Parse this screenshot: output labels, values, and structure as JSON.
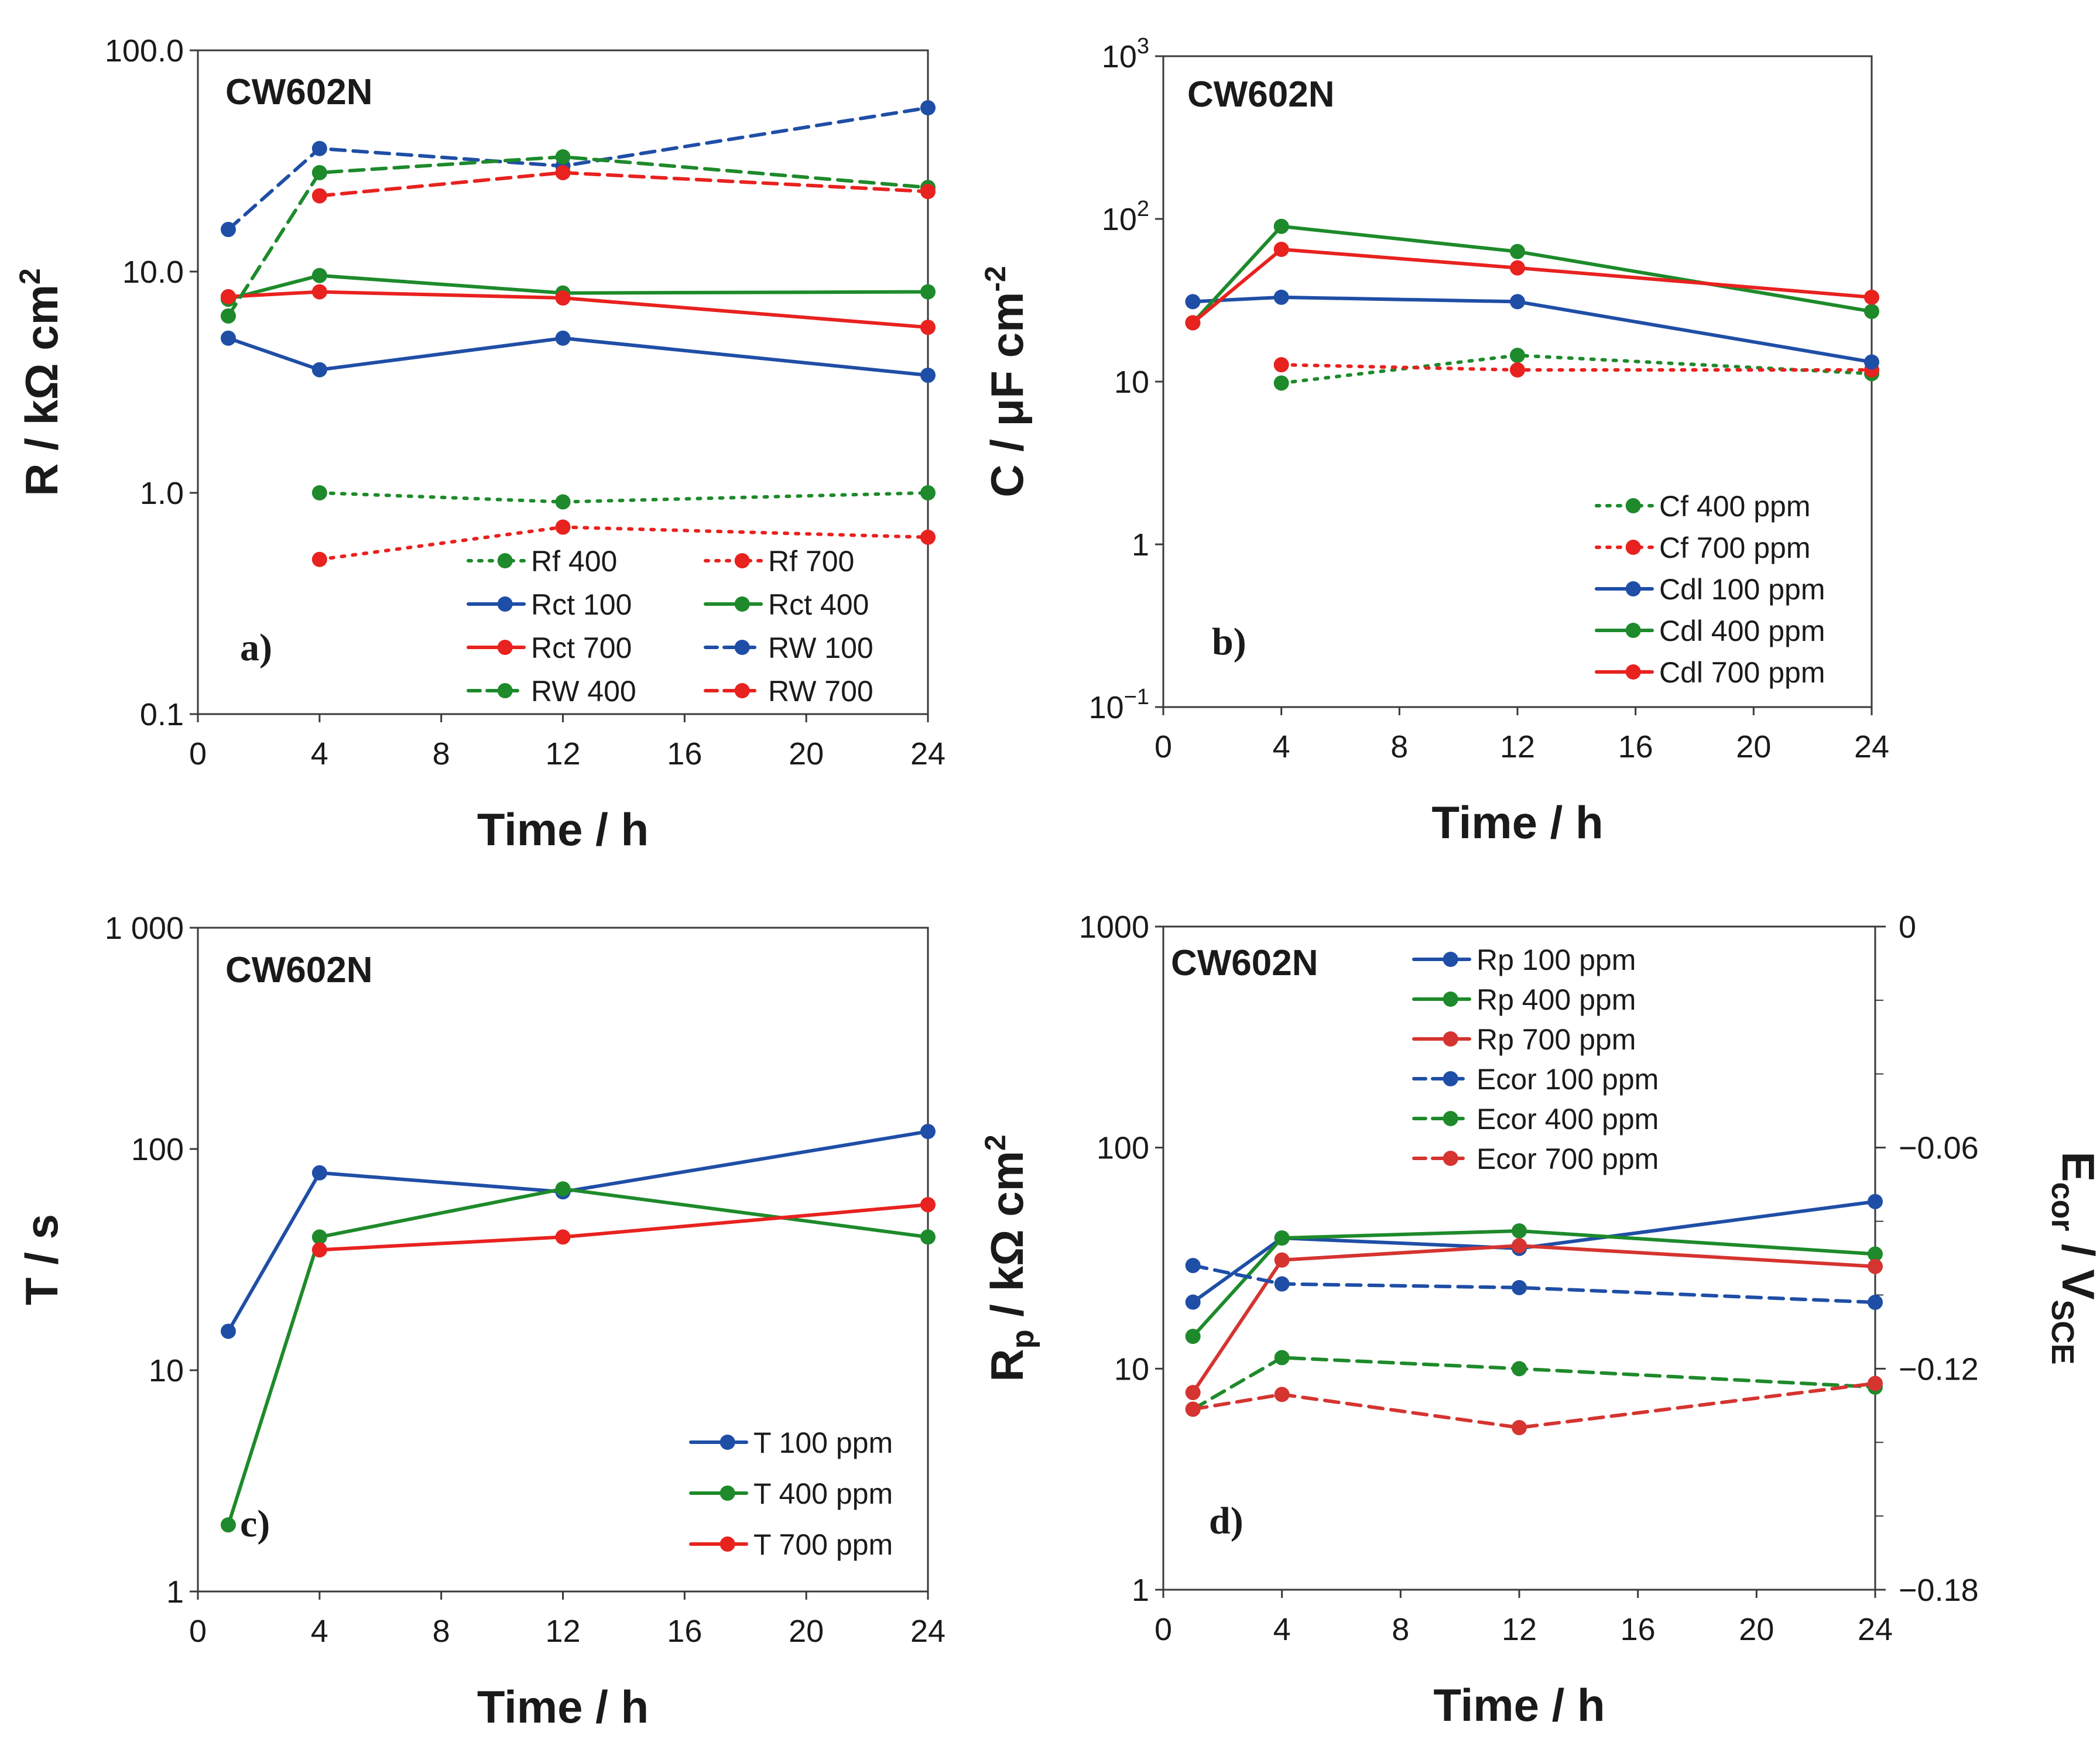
{
  "figure": {
    "colors": {
      "blue": "#1f4ea6",
      "green": "#1e8a2b",
      "red": "#e8221f",
      "red_d": "#d53430"
    },
    "chart_data": [
      {
        "type": "line",
        "id": "a",
        "title": "CW602N",
        "label": "a)",
        "xlabel": "Time / h",
        "ylabel": "R / kΩ cm²",
        "ylabel_base": "R / kΩ cm",
        "ylabel_sup": "2",
        "yscale": "log",
        "xlim": [
          0,
          24
        ],
        "ylim": [
          0.1,
          100
        ],
        "xticks": [
          0,
          4,
          8,
          12,
          16,
          20,
          24
        ],
        "xtick_labels": [
          "0",
          "4",
          "8",
          "12",
          "16",
          "20",
          "24"
        ],
        "yticks": [
          0.1,
          1,
          10,
          100
        ],
        "ytick_labels": [
          "0.1",
          "1.0",
          "10.0",
          "100.0"
        ],
        "minor_ticks": [],
        "legend_columns": 2,
        "series": [
          {
            "name": "Rf 400",
            "color": "green",
            "style": "dotted",
            "x": [
              4,
              12,
              24
            ],
            "values": [
              1.0,
              0.91,
              1.0
            ]
          },
          {
            "name": "Rf 700",
            "color": "red",
            "style": "dotted",
            "x": [
              4,
              12,
              24
            ],
            "values": [
              0.5,
              0.7,
              0.63
            ]
          },
          {
            "name": "Rct 100",
            "color": "blue",
            "style": "solid",
            "x": [
              1,
              4,
              12,
              24
            ],
            "values": [
              5.0,
              3.6,
              5.0,
              3.4
            ]
          },
          {
            "name": "Rct 400",
            "color": "green",
            "style": "solid",
            "x": [
              1,
              4,
              12,
              24
            ],
            "values": [
              7.5,
              9.6,
              8.0,
              8.1
            ]
          },
          {
            "name": "Rct 700",
            "color": "red",
            "style": "solid",
            "x": [
              1,
              4,
              12,
              24
            ],
            "values": [
              7.7,
              8.1,
              7.6,
              5.6
            ]
          },
          {
            "name": "RW 100",
            "color": "blue",
            "style": "dashed",
            "x": [
              1,
              4,
              12,
              24
            ],
            "values": [
              15.5,
              36,
              30,
              55
            ]
          },
          {
            "name": "RW 400",
            "color": "green",
            "style": "dashed",
            "x": [
              1,
              4,
              12,
              24
            ],
            "values": [
              6.3,
              28,
              33,
              24
            ]
          },
          {
            "name": "RW 700",
            "color": "red",
            "style": "dashed",
            "x": [
              4,
              12,
              24
            ],
            "values": [
              22,
              28,
              23
            ]
          }
        ]
      },
      {
        "type": "line",
        "id": "b",
        "title": "CW602N",
        "label": "b)",
        "xlabel": "Time / h",
        "ylabel": "C / μF cm⁻²",
        "ylabel_base": "C / μF cm",
        "ylabel_sup": "-2",
        "yscale": "log",
        "xlim": [
          0,
          24
        ],
        "ylim": [
          0.1,
          1000
        ],
        "xticks": [
          0,
          4,
          8,
          12,
          16,
          20,
          24
        ],
        "xtick_labels": [
          "0",
          "4",
          "8",
          "12",
          "16",
          "20",
          "24"
        ],
        "yticks": [
          0.1,
          1,
          10,
          100,
          1000
        ],
        "ytick_labels": [
          "10^-1",
          "1",
          "10",
          "10^2",
          "10^3"
        ],
        "minor_ticks": [],
        "legend_columns": 1,
        "series": [
          {
            "name": "Cf 400 ppm",
            "color": "green",
            "style": "dotted",
            "x": [
              4,
              12,
              24
            ],
            "values": [
              9.8,
              14.5,
              11.2
            ]
          },
          {
            "name": "Cf 700 ppm",
            "color": "red",
            "style": "dotted",
            "x": [
              4,
              12,
              24
            ],
            "values": [
              12.7,
              11.8,
              11.8
            ]
          },
          {
            "name": "Cdl 100 ppm",
            "color": "blue",
            "style": "solid",
            "x": [
              1,
              4,
              12,
              24
            ],
            "values": [
              31,
              33,
              31,
              13.2
            ]
          },
          {
            "name": "Cdl 400 ppm",
            "color": "green",
            "style": "solid",
            "x": [
              1,
              4,
              12,
              24
            ],
            "values": [
              23,
              90,
              63,
              27
            ]
          },
          {
            "name": "Cdl 700 ppm",
            "color": "red",
            "style": "solid",
            "x": [
              1,
              4,
              12,
              24
            ],
            "values": [
              23,
              65,
              50,
              33
            ]
          }
        ]
      },
      {
        "type": "line",
        "id": "c",
        "title": "CW602N",
        "label": "c)",
        "xlabel": "Time / h",
        "ylabel": "T / s",
        "yscale": "log",
        "xlim": [
          0,
          24
        ],
        "ylim": [
          1,
          1000
        ],
        "xticks": [
          0,
          4,
          8,
          12,
          16,
          20,
          24
        ],
        "xtick_labels": [
          "0",
          "4",
          "8",
          "12",
          "16",
          "20",
          "24"
        ],
        "yticks": [
          1,
          10,
          100,
          1000
        ],
        "ytick_labels": [
          "1",
          "10",
          "100",
          "1 000"
        ],
        "minor_ticks": [],
        "legend_columns": 1,
        "series": [
          {
            "name": "T 100 ppm",
            "color": "blue",
            "style": "solid",
            "x": [
              1,
              4,
              12,
              24
            ],
            "values": [
              15,
              78,
              64,
              120
            ]
          },
          {
            "name": "T 400 ppm",
            "color": "green",
            "style": "solid",
            "x": [
              1,
              4,
              12,
              24
            ],
            "values": [
              2,
              40,
              66,
              40
            ]
          },
          {
            "name": "T 700 ppm",
            "color": "red",
            "style": "solid",
            "x": [
              4,
              12,
              24
            ],
            "values": [
              35,
              40,
              56
            ]
          }
        ]
      },
      {
        "type": "line",
        "id": "d",
        "title": "CW602N",
        "label": "d)",
        "xlabel": "Time / h",
        "ylabel": "Rp / kΩ cm²",
        "ylabel_base": "R",
        "ylabel_sub": "p",
        "ylabel_rest": " / kΩ cm",
        "ylabel_sup": "2",
        "y2label": "Ecor / VSCE",
        "y2label_base": "E",
        "y2label_sub": "cor",
        "y2label_rest": " / V",
        "y2label_sub2": "SCE",
        "yscale": "log",
        "xlim": [
          0,
          24
        ],
        "ylim": [
          1,
          1000
        ],
        "y2lim": [
          -0.18,
          0
        ],
        "xticks": [
          0,
          4,
          8,
          12,
          16,
          20,
          24
        ],
        "xtick_labels": [
          "0",
          "4",
          "8",
          "12",
          "16",
          "20",
          "24"
        ],
        "yticks": [
          1,
          10,
          100,
          1000
        ],
        "ytick_labels": [
          "1",
          "10",
          "100",
          "1000"
        ],
        "y2ticks": [
          -0.18,
          -0.12,
          -0.06,
          0
        ],
        "y2tick_labels": [
          "−0.18",
          "−0.12",
          "−0.06",
          "0"
        ],
        "minor_ticks": [],
        "y2minor_ticks": [
          -0.16,
          -0.14,
          -0.1,
          -0.08,
          -0.04,
          -0.02
        ],
        "legend_columns": 1,
        "series": [
          {
            "name": "Rp 100 ppm",
            "color": "blue",
            "style": "solid",
            "axis": "left",
            "x": [
              1,
              4,
              12,
              24
            ],
            "values": [
              20,
              39,
              35,
              57
            ]
          },
          {
            "name": "Rp 400 ppm",
            "color": "green",
            "style": "solid",
            "axis": "left",
            "x": [
              1,
              4,
              12,
              24
            ],
            "values": [
              14,
              39,
              42,
              33
            ]
          },
          {
            "name": "Rp 700 ppm",
            "color": "red_d",
            "style": "solid",
            "axis": "left",
            "x": [
              1,
              4,
              12,
              24
            ],
            "values": [
              7.8,
              31,
              36,
              29
            ]
          },
          {
            "name": "Ecor 100 ppm",
            "color": "blue",
            "style": "dashed",
            "axis": "right",
            "x": [
              1,
              4,
              12,
              24
            ],
            "values": [
              -0.092,
              -0.097,
              -0.098,
              -0.102
            ]
          },
          {
            "name": "Ecor 400 ppm",
            "color": "green",
            "style": "dashed",
            "axis": "right",
            "x": [
              1,
              4,
              12,
              24
            ],
            "values": [
              -0.131,
              -0.117,
              -0.12,
              -0.125
            ]
          },
          {
            "name": "Ecor 700 ppm",
            "color": "red_d",
            "style": "dashed",
            "axis": "right",
            "x": [
              1,
              4,
              12,
              24
            ],
            "values": [
              -0.131,
              -0.127,
              -0.136,
              -0.124
            ]
          }
        ]
      }
    ]
  }
}
